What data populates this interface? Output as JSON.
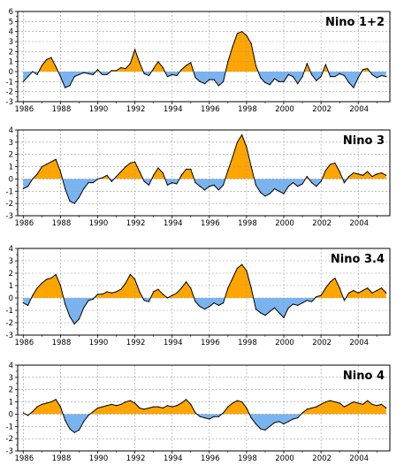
{
  "colors": {
    "positive": "#ffa500",
    "negative": "#7ab4f0",
    "line": "#000000",
    "grid": "#9a9a9a"
  },
  "chart_data": [
    {
      "type": "area",
      "title": "Nino 1+2",
      "x_tick_labels": [
        "1986",
        "1988",
        "1990",
        "1992",
        "1994",
        "1996",
        "1998",
        "2000",
        "2002",
        "2004"
      ],
      "ylim": [
        -3,
        6
      ],
      "y_ticks": [
        -3,
        -2,
        -1,
        0,
        1,
        2,
        3,
        4,
        5,
        6
      ],
      "y_tick_labels": [
        "-3",
        "-2",
        "-1",
        "0",
        "1",
        "2",
        "3",
        "4",
        "5",
        "6"
      ],
      "grid": true,
      "x": [
        1986.0,
        1986.25,
        1986.5,
        1986.75,
        1987.0,
        1987.25,
        1987.5,
        1987.75,
        1988.0,
        1988.25,
        1988.5,
        1988.75,
        1989.0,
        1989.25,
        1989.5,
        1989.75,
        1990.0,
        1990.25,
        1990.5,
        1990.75,
        1991.0,
        1991.25,
        1991.5,
        1991.75,
        1992.0,
        1992.25,
        1992.5,
        1992.75,
        1993.0,
        1993.25,
        1993.5,
        1993.75,
        1994.0,
        1994.25,
        1994.5,
        1994.75,
        1995.0,
        1995.25,
        1995.5,
        1995.75,
        1996.0,
        1996.25,
        1996.5,
        1996.75,
        1997.0,
        1997.25,
        1997.5,
        1997.75,
        1998.0,
        1998.25,
        1998.5,
        1998.75,
        1999.0,
        1999.25,
        1999.5,
        1999.75,
        2000.0,
        2000.25,
        2000.5,
        2000.75,
        2001.0,
        2001.25,
        2001.5,
        2001.75,
        2002.0,
        2002.25,
        2002.5,
        2002.75,
        2003.0,
        2003.25,
        2003.5,
        2003.75,
        2004.0,
        2004.25,
        2004.5,
        2004.75,
        2005.0,
        2005.25,
        2005.5
      ],
      "values": [
        -1.0,
        -0.5,
        0.0,
        -0.3,
        0.6,
        1.2,
        1.4,
        0.5,
        -0.5,
        -1.6,
        -1.4,
        -0.5,
        -0.3,
        -0.1,
        -0.2,
        -0.3,
        0.2,
        -0.3,
        -0.3,
        0.1,
        0.1,
        0.4,
        0.3,
        0.8,
        2.2,
        0.9,
        -0.2,
        -0.4,
        0.3,
        1.0,
        0.4,
        -0.5,
        -0.3,
        -0.4,
        0.2,
        0.6,
        0.9,
        -0.6,
        -1.0,
        -1.2,
        -0.8,
        -0.8,
        -1.4,
        -1.0,
        1.0,
        2.5,
        3.8,
        4.0,
        3.6,
        2.8,
        0.6,
        -0.6,
        -1.1,
        -1.3,
        -0.7,
        -1.0,
        -1.0,
        -0.3,
        -0.5,
        -1.2,
        -0.5,
        0.8,
        -0.3,
        -0.9,
        -0.5,
        0.7,
        -0.5,
        -0.5,
        -0.2,
        -0.4,
        -1.1,
        -1.6,
        -0.6,
        0.2,
        0.3,
        -0.3,
        -0.6,
        -0.4,
        -0.5
      ]
    },
    {
      "type": "area",
      "title": "Nino 3",
      "x_tick_labels": [
        "1986",
        "1988",
        "1990",
        "1992",
        "1994",
        "1996",
        "1998",
        "2000",
        "2002",
        "2004"
      ],
      "ylim": [
        -3,
        4
      ],
      "y_ticks": [
        -3,
        -2,
        -1,
        0,
        1,
        2,
        3,
        4
      ],
      "y_tick_labels": [
        "-3",
        "-2",
        "-1",
        "0",
        "1",
        "2",
        "3",
        "4"
      ],
      "grid": true,
      "x": [
        1986.0,
        1986.25,
        1986.5,
        1986.75,
        1987.0,
        1987.25,
        1987.5,
        1987.75,
        1988.0,
        1988.25,
        1988.5,
        1988.75,
        1989.0,
        1989.25,
        1989.5,
        1989.75,
        1990.0,
        1990.25,
        1990.5,
        1990.75,
        1991.0,
        1991.25,
        1991.5,
        1991.75,
        1992.0,
        1992.25,
        1992.5,
        1992.75,
        1993.0,
        1993.25,
        1993.5,
        1993.75,
        1994.0,
        1994.25,
        1994.5,
        1994.75,
        1995.0,
        1995.25,
        1995.5,
        1995.75,
        1996.0,
        1996.25,
        1996.5,
        1996.75,
        1997.0,
        1997.25,
        1997.5,
        1997.75,
        1998.0,
        1998.25,
        1998.5,
        1998.75,
        1999.0,
        1999.25,
        1999.5,
        1999.75,
        2000.0,
        2000.25,
        2000.5,
        2000.75,
        2001.0,
        2001.25,
        2001.5,
        2001.75,
        2002.0,
        2002.25,
        2002.5,
        2002.75,
        2003.0,
        2003.25,
        2003.5,
        2003.75,
        2004.0,
        2004.25,
        2004.5,
        2004.75,
        2005.0,
        2005.25,
        2005.5
      ],
      "values": [
        -0.8,
        -0.6,
        0.0,
        0.4,
        1.0,
        1.2,
        1.4,
        1.6,
        0.6,
        -0.8,
        -1.8,
        -2.0,
        -1.5,
        -0.8,
        -0.3,
        -0.3,
        0.0,
        0.1,
        0.3,
        -0.2,
        0.2,
        0.6,
        1.0,
        1.3,
        1.4,
        0.6,
        -0.2,
        -0.5,
        0.3,
        0.9,
        0.5,
        -0.5,
        -0.3,
        -0.4,
        0.3,
        0.8,
        0.8,
        -0.3,
        -0.6,
        -0.9,
        -0.6,
        -0.5,
        -0.9,
        -0.5,
        0.7,
        1.8,
        3.0,
        3.6,
        2.6,
        1.0,
        -0.5,
        -1.1,
        -1.4,
        -1.2,
        -0.8,
        -1.0,
        -1.2,
        -0.6,
        -0.3,
        -0.6,
        -0.4,
        0.2,
        -0.3,
        -0.6,
        -0.2,
        0.7,
        1.2,
        1.3,
        0.6,
        -0.3,
        0.2,
        0.5,
        0.4,
        0.3,
        0.6,
        0.2,
        0.4,
        0.5,
        0.3
      ]
    },
    {
      "type": "area",
      "title": "Nino 3.4",
      "x_tick_labels": [
        "1986",
        "1988",
        "1990",
        "1992",
        "1994",
        "1996",
        "1998",
        "2000",
        "2002",
        "2004"
      ],
      "ylim": [
        -3,
        4
      ],
      "y_ticks": [
        -3,
        -2,
        -1,
        0,
        1,
        2,
        3,
        4
      ],
      "y_tick_labels": [
        "-3",
        "-2",
        "-1",
        "0",
        "1",
        "2",
        "3",
        "4"
      ],
      "grid": true,
      "x": [
        1986.0,
        1986.25,
        1986.5,
        1986.75,
        1987.0,
        1987.25,
        1987.5,
        1987.75,
        1988.0,
        1988.25,
        1988.5,
        1988.75,
        1989.0,
        1989.25,
        1989.5,
        1989.75,
        1990.0,
        1990.25,
        1990.5,
        1990.75,
        1991.0,
        1991.25,
        1991.5,
        1991.75,
        1992.0,
        1992.25,
        1992.5,
        1992.75,
        1993.0,
        1993.25,
        1993.5,
        1993.75,
        1994.0,
        1994.25,
        1994.5,
        1994.75,
        1995.0,
        1995.25,
        1995.5,
        1995.75,
        1996.0,
        1996.25,
        1996.5,
        1996.75,
        1997.0,
        1997.25,
        1997.5,
        1997.75,
        1998.0,
        1998.25,
        1998.5,
        1998.75,
        1999.0,
        1999.25,
        1999.5,
        1999.75,
        2000.0,
        2000.25,
        2000.5,
        2000.75,
        2001.0,
        2001.25,
        2001.5,
        2001.75,
        2002.0,
        2002.25,
        2002.5,
        2002.75,
        2003.0,
        2003.25,
        2003.5,
        2003.75,
        2004.0,
        2004.25,
        2004.5,
        2004.75,
        2005.0,
        2005.25,
        2005.5
      ],
      "values": [
        -0.4,
        -0.6,
        0.2,
        0.8,
        1.2,
        1.5,
        1.6,
        1.9,
        1.0,
        -0.5,
        -1.5,
        -2.1,
        -1.7,
        -0.8,
        -0.2,
        -0.1,
        0.3,
        0.3,
        0.5,
        0.4,
        0.5,
        0.7,
        1.2,
        1.9,
        1.5,
        0.5,
        -0.2,
        -0.3,
        0.5,
        0.7,
        0.3,
        0.0,
        0.2,
        0.4,
        0.8,
        1.3,
        0.8,
        -0.3,
        -0.7,
        -0.9,
        -0.7,
        -0.4,
        -0.6,
        -0.4,
        0.8,
        1.6,
        2.4,
        2.7,
        2.2,
        0.8,
        -0.9,
        -1.2,
        -1.4,
        -1.1,
        -0.8,
        -1.2,
        -1.6,
        -0.8,
        -0.5,
        -0.6,
        -0.4,
        -0.2,
        -0.3,
        0.1,
        0.2,
        0.8,
        1.3,
        1.6,
        0.8,
        -0.2,
        0.4,
        0.6,
        0.4,
        0.6,
        0.8,
        0.4,
        0.6,
        0.8,
        0.4
      ]
    },
    {
      "type": "area",
      "title": "Nino 4",
      "x_tick_labels": [
        "1986",
        "1988",
        "1990",
        "1992",
        "1994",
        "1996",
        "1998",
        "2000",
        "2002",
        "2004"
      ],
      "ylim": [
        -3,
        4
      ],
      "y_ticks": [
        -3,
        -2,
        -1,
        0,
        1,
        2,
        3,
        4
      ],
      "y_tick_labels": [
        "-3",
        "-2",
        "-1",
        "0",
        "1",
        "2",
        "3",
        "4"
      ],
      "grid": true,
      "x": [
        1986.0,
        1986.25,
        1986.5,
        1986.75,
        1987.0,
        1987.25,
        1987.5,
        1987.75,
        1988.0,
        1988.25,
        1988.5,
        1988.75,
        1989.0,
        1989.25,
        1989.5,
        1989.75,
        1990.0,
        1990.25,
        1990.5,
        1990.75,
        1991.0,
        1991.25,
        1991.5,
        1991.75,
        1992.0,
        1992.25,
        1992.5,
        1992.75,
        1993.0,
        1993.25,
        1993.5,
        1993.75,
        1994.0,
        1994.25,
        1994.5,
        1994.75,
        1995.0,
        1995.25,
        1995.5,
        1995.75,
        1996.0,
        1996.25,
        1996.5,
        1996.75,
        1997.0,
        1997.25,
        1997.5,
        1997.75,
        1998.0,
        1998.25,
        1998.5,
        1998.75,
        1999.0,
        1999.25,
        1999.5,
        1999.75,
        2000.0,
        2000.25,
        2000.5,
        2000.75,
        2001.0,
        2001.25,
        2001.5,
        2001.75,
        2002.0,
        2002.25,
        2002.5,
        2002.75,
        2003.0,
        2003.25,
        2003.5,
        2003.75,
        2004.0,
        2004.25,
        2004.5,
        2004.75,
        2005.0,
        2005.25,
        2005.5
      ],
      "values": [
        0.1,
        -0.1,
        0.2,
        0.6,
        0.8,
        0.9,
        1.0,
        1.2,
        0.6,
        -0.5,
        -1.2,
        -1.5,
        -1.3,
        -0.6,
        -0.1,
        0.2,
        0.5,
        0.6,
        0.7,
        0.8,
        0.7,
        0.8,
        1.0,
        1.1,
        0.9,
        0.5,
        0.4,
        0.5,
        0.6,
        0.6,
        0.5,
        0.7,
        0.6,
        0.7,
        0.9,
        1.2,
        0.8,
        0.1,
        -0.2,
        -0.3,
        -0.4,
        -0.2,
        -0.2,
        0.1,
        0.6,
        0.9,
        1.1,
        1.0,
        0.5,
        -0.3,
        -0.8,
        -1.2,
        -1.3,
        -1.0,
        -0.7,
        -0.6,
        -0.8,
        -0.6,
        -0.4,
        -0.3,
        0.1,
        0.4,
        0.5,
        0.6,
        0.8,
        1.0,
        1.1,
        1.0,
        0.9,
        0.6,
        0.8,
        1.0,
        0.9,
        0.8,
        1.1,
        0.8,
        0.7,
        0.8,
        0.5
      ]
    }
  ]
}
